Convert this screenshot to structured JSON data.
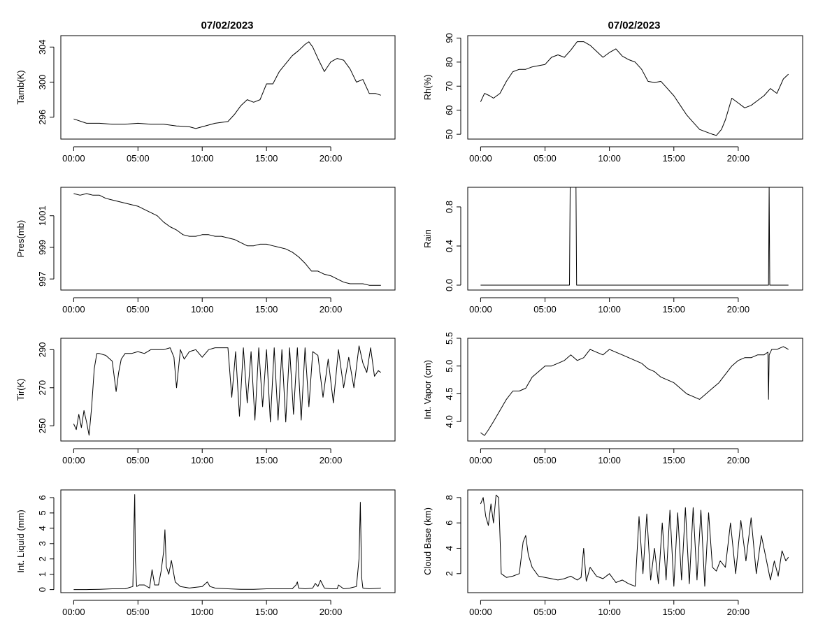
{
  "figure": {
    "titles": [
      "07/02/2023",
      "07/02/2023"
    ],
    "x_ticks": [
      "00:00",
      "05:00",
      "10:00",
      "15:00",
      "20:00"
    ],
    "x_tick_hours": [
      0,
      5,
      10,
      15,
      20
    ],
    "xlim_hours": [
      -1,
      25
    ]
  },
  "chart_data": [
    {
      "type": "line",
      "ylabel": "Tamb(K)",
      "ylim": [
        293.5,
        305.3
      ],
      "yticks": [
        296,
        300,
        304
      ],
      "x_unit": "hours",
      "x": [
        0,
        1,
        2,
        3,
        4,
        5,
        6,
        7,
        8,
        9,
        9.5,
        10,
        11,
        12,
        12.5,
        13,
        13.5,
        14,
        14.5,
        15,
        15.5,
        16,
        16.5,
        17,
        17.5,
        18,
        18.3,
        18.6,
        19,
        19.5,
        20,
        20.5,
        21,
        21.5,
        22,
        22.5,
        23,
        23.5,
        23.9
      ],
      "y": [
        295.8,
        295.3,
        295.3,
        295.2,
        295.2,
        295.3,
        295.2,
        295.2,
        295.0,
        294.9,
        294.7,
        294.9,
        295.3,
        295.5,
        296.3,
        297.3,
        298.0,
        297.7,
        298.0,
        299.8,
        299.8,
        301.2,
        302.1,
        303.0,
        303.6,
        304.3,
        304.6,
        304.0,
        302.7,
        301.2,
        302.3,
        302.7,
        302.5,
        301.5,
        300.0,
        300.3,
        298.7,
        298.7,
        298.5
      ]
    },
    {
      "type": "line",
      "ylabel": "Rh(%)",
      "ylim": [
        48,
        91
      ],
      "yticks": [
        50,
        60,
        70,
        80,
        90
      ],
      "x_unit": "hours",
      "x": [
        0,
        0.3,
        0.7,
        1,
        1.5,
        2,
        2.5,
        3,
        3.5,
        4,
        4.5,
        5,
        5.5,
        6,
        6.5,
        7,
        7.5,
        8,
        8.5,
        9,
        9.5,
        10,
        10.5,
        11,
        11.5,
        12,
        12.5,
        13,
        13.5,
        14,
        14.5,
        15,
        15.5,
        16,
        16.5,
        17,
        17.5,
        18,
        18.3,
        18.7,
        19,
        19.5,
        20,
        20.5,
        21,
        21.5,
        22,
        22.5,
        23,
        23.5,
        23.9
      ],
      "y": [
        63.5,
        67,
        66,
        65,
        67,
        72,
        76,
        77,
        77,
        78,
        78.5,
        79,
        82,
        83,
        82,
        85,
        88.5,
        88.5,
        87,
        84.5,
        82,
        84,
        85.5,
        82.5,
        81,
        80,
        77,
        72,
        71.5,
        72,
        69,
        66,
        62,
        58,
        55,
        52,
        51,
        50,
        49.5,
        52,
        56,
        65,
        63,
        61,
        62,
        64,
        66,
        69,
        67,
        73,
        75
      ]
    },
    {
      "type": "line",
      "ylabel": "Pres(mb)",
      "ylim": [
        996.3,
        1002.8
      ],
      "yticks": [
        997,
        999,
        1001
      ],
      "x_unit": "hours",
      "x": [
        0,
        0.5,
        1,
        1.5,
        2,
        2.5,
        3,
        3.5,
        4,
        4.5,
        5,
        5.5,
        6,
        6.5,
        7,
        7.5,
        8,
        8.5,
        9,
        9.5,
        10,
        10.5,
        11,
        11.5,
        12,
        12.5,
        13,
        13.5,
        14,
        14.5,
        15,
        15.5,
        16,
        16.5,
        17,
        17.5,
        18,
        18.5,
        19,
        19.5,
        20,
        20.5,
        21,
        21.5,
        22,
        22.5,
        23,
        23.5,
        23.9
      ],
      "y": [
        1002.4,
        1002.3,
        1002.4,
        1002.3,
        1002.3,
        1002.1,
        1002.0,
        1001.9,
        1001.8,
        1001.7,
        1001.6,
        1001.4,
        1001.2,
        1001.0,
        1000.6,
        1000.3,
        1000.1,
        999.8,
        999.7,
        999.7,
        999.8,
        999.8,
        999.7,
        999.7,
        999.6,
        999.5,
        999.3,
        999.1,
        999.1,
        999.2,
        999.2,
        999.1,
        999.0,
        998.9,
        998.7,
        998.4,
        998.0,
        997.5,
        997.5,
        997.3,
        997.2,
        997.0,
        996.8,
        996.7,
        996.7,
        996.7,
        996.6,
        996.6,
        996.6
      ]
    },
    {
      "type": "line",
      "ylabel": "Rain",
      "ylim": [
        -0.05,
        1.0
      ],
      "yticks": [
        0.0,
        0.4,
        0.8
      ],
      "x_unit": "hours",
      "x": [
        0,
        6.9,
        6.95,
        7.4,
        7.45,
        22.35,
        22.4,
        22.45,
        23.9
      ],
      "y": [
        0,
        0,
        1,
        1,
        0,
        0,
        1,
        0,
        0
      ]
    },
    {
      "type": "line",
      "ylabel": "Tir(K)",
      "ylim": [
        242,
        296
      ],
      "yticks": [
        250,
        270,
        290
      ],
      "x_unit": "hours",
      "x": [
        0,
        0.2,
        0.4,
        0.6,
        0.8,
        1,
        1.2,
        1.4,
        1.6,
        1.8,
        2,
        2.5,
        3,
        3.3,
        3.5,
        3.7,
        4,
        4.5,
        5,
        5.5,
        6,
        6.5,
        7,
        7.5,
        7.8,
        8,
        8.3,
        8.6,
        9,
        9.5,
        10,
        10.5,
        11,
        11.5,
        12,
        12.3,
        12.6,
        12.9,
        13.2,
        13.5,
        13.8,
        14.1,
        14.4,
        14.7,
        15,
        15.3,
        15.6,
        15.9,
        16.2,
        16.5,
        16.8,
        17.1,
        17.4,
        17.7,
        18,
        18.3,
        18.6,
        19,
        19.4,
        19.8,
        20.2,
        20.6,
        21,
        21.4,
        21.8,
        22.2,
        22.5,
        22.8,
        23.1,
        23.4,
        23.7,
        23.9
      ],
      "y": [
        251,
        248,
        256,
        249,
        258,
        252,
        245,
        260,
        280,
        288,
        288,
        287,
        284,
        268,
        278,
        285,
        288,
        288,
        289,
        288,
        290,
        290,
        290,
        291,
        286,
        270,
        290,
        285,
        289,
        290,
        286,
        290,
        291,
        291,
        291,
        265,
        289,
        255,
        291,
        262,
        289,
        253,
        291,
        260,
        290,
        252,
        291,
        253,
        290,
        252,
        291,
        256,
        291,
        253,
        291,
        260,
        289,
        287,
        265,
        285,
        262,
        290,
        270,
        286,
        270,
        292,
        283,
        278,
        291,
        276,
        279,
        278
      ]
    },
    {
      "type": "line",
      "ylabel": "Int. Vapor (cm)",
      "ylim": [
        3.65,
        5.5
      ],
      "yticks": [
        4.0,
        4.5,
        5.0,
        5.5
      ],
      "x_unit": "hours",
      "x": [
        0,
        0.3,
        0.6,
        1,
        1.5,
        2,
        2.5,
        3,
        3.5,
        4,
        4.5,
        5,
        5.5,
        6,
        6.5,
        7,
        7.5,
        8,
        8.5,
        9,
        9.5,
        10,
        10.5,
        11,
        11.5,
        12,
        12.5,
        13,
        13.5,
        14,
        14.5,
        15,
        15.5,
        16,
        16.5,
        17,
        17.5,
        18,
        18.5,
        19,
        19.5,
        20,
        20.5,
        21,
        21.5,
        22,
        22.3,
        22.35,
        22.4,
        22.6,
        23,
        23.5,
        23.9
      ],
      "y": [
        3.8,
        3.75,
        3.85,
        4.0,
        4.2,
        4.4,
        4.55,
        4.55,
        4.6,
        4.8,
        4.9,
        5.0,
        5.0,
        5.05,
        5.1,
        5.2,
        5.1,
        5.15,
        5.3,
        5.25,
        5.2,
        5.3,
        5.25,
        5.2,
        5.15,
        5.1,
        5.05,
        4.95,
        4.9,
        4.8,
        4.75,
        4.7,
        4.6,
        4.5,
        4.45,
        4.4,
        4.5,
        4.6,
        4.7,
        4.85,
        5.0,
        5.1,
        5.15,
        5.15,
        5.2,
        5.2,
        5.25,
        4.4,
        5.2,
        5.3,
        5.3,
        5.35,
        5.3
      ]
    },
    {
      "type": "line",
      "ylabel": "Int. Liquid (mm)",
      "ylim": [
        -0.2,
        6.5
      ],
      "yticks": [
        0,
        1,
        2,
        3,
        4,
        5,
        6
      ],
      "x_unit": "hours",
      "x": [
        0,
        1,
        2,
        3,
        4,
        4.6,
        4.7,
        4.75,
        4.8,
        4.9,
        5.1,
        5.5,
        5.9,
        6.1,
        6.3,
        6.6,
        6.8,
        7.0,
        7.1,
        7.2,
        7.4,
        7.6,
        7.9,
        8.3,
        9,
        10,
        10.4,
        10.6,
        11,
        12,
        13,
        14,
        15,
        16,
        17,
        17.3,
        17.4,
        17.5,
        18,
        18.6,
        18.8,
        19,
        19.2,
        19.5,
        20,
        20.5,
        20.6,
        21,
        21.5,
        22,
        22.2,
        22.3,
        22.4,
        22.5,
        23,
        23.9
      ],
      "y": [
        0,
        0,
        0.02,
        0.05,
        0.05,
        0.2,
        4.5,
        6.2,
        2.0,
        0.2,
        0.3,
        0.3,
        0.1,
        1.3,
        0.3,
        0.3,
        1.2,
        2.5,
        3.9,
        1.5,
        1.0,
        1.9,
        0.5,
        0.2,
        0.1,
        0.2,
        0.5,
        0.2,
        0.1,
        0.05,
        0.02,
        0.02,
        0.05,
        0.05,
        0.05,
        0.3,
        0.5,
        0.1,
        0.05,
        0.1,
        0.4,
        0.2,
        0.6,
        0.1,
        0.05,
        0.05,
        0.3,
        0.05,
        0.1,
        0.2,
        2.0,
        5.7,
        0.8,
        0.1,
        0.05,
        0.1
      ]
    },
    {
      "type": "line",
      "ylabel": "Cloud Base (km)",
      "ylim": [
        0.5,
        8.6
      ],
      "yticks": [
        2,
        4,
        6,
        8
      ],
      "x_unit": "hours",
      "x": [
        0,
        0.2,
        0.4,
        0.6,
        0.8,
        1,
        1.2,
        1.4,
        1.5,
        1.6,
        2,
        2.5,
        3,
        3.3,
        3.5,
        3.7,
        4,
        4.5,
        5,
        5.5,
        6,
        6.5,
        7,
        7.5,
        7.8,
        8,
        8.2,
        8.5,
        9,
        9.5,
        10,
        10.5,
        11,
        11.5,
        12,
        12.3,
        12.6,
        12.9,
        13.2,
        13.5,
        13.8,
        14.1,
        14.4,
        14.7,
        15,
        15.3,
        15.6,
        15.9,
        16.2,
        16.5,
        16.8,
        17.1,
        17.4,
        17.7,
        18,
        18.3,
        18.6,
        19,
        19.4,
        19.8,
        20.2,
        20.6,
        21,
        21.4,
        21.8,
        22.2,
        22.5,
        22.8,
        23.1,
        23.4,
        23.7,
        23.9
      ],
      "y": [
        7.5,
        8.0,
        6.5,
        5.8,
        7.5,
        6.0,
        8.2,
        8.0,
        5.0,
        2.0,
        1.7,
        1.8,
        2.0,
        4.5,
        5.0,
        3.5,
        2.5,
        1.8,
        1.7,
        1.6,
        1.5,
        1.6,
        1.8,
        1.5,
        1.7,
        4.0,
        1.4,
        2.5,
        1.8,
        1.6,
        2.0,
        1.3,
        1.5,
        1.2,
        1.0,
        6.5,
        2.0,
        6.7,
        1.5,
        4.0,
        1.2,
        6.0,
        1.5,
        7.0,
        1.0,
        6.8,
        1.5,
        7.2,
        1.2,
        7.2,
        1.5,
        7.0,
        1.0,
        6.8,
        2.5,
        2.2,
        3.0,
        2.5,
        6.0,
        2.0,
        6.2,
        3.0,
        6.4,
        2.0,
        5.0,
        3.0,
        1.5,
        3.0,
        1.8,
        3.8,
        3.0,
        3.3
      ]
    }
  ]
}
